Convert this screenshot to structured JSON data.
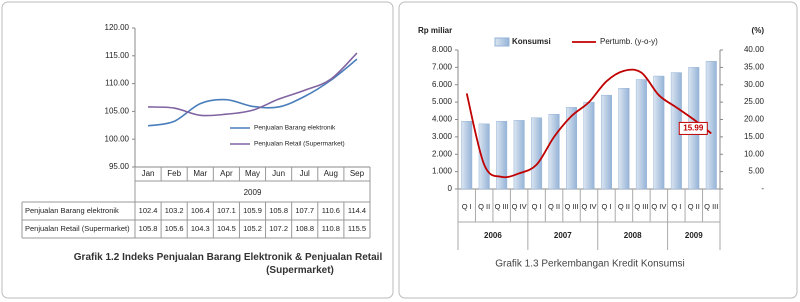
{
  "chart_data": [
    {
      "type": "line",
      "title": "Grafik 1.2 Indeks Penjualan Barang Elektronik & Penjualan Retail (Supermarket)",
      "categories": [
        "Jan",
        "Feb",
        "Mar",
        "Apr",
        "May",
        "Jun",
        "Jul",
        "Aug",
        "Sep"
      ],
      "x_group": "2009",
      "series": [
        {
          "name": "Penjualan Barang elektronik",
          "color": "#4a7ebb",
          "values": [
            102.4,
            103.2,
            106.4,
            107.1,
            105.9,
            105.8,
            107.7,
            110.6,
            114.4
          ]
        },
        {
          "name": "Penjualan Retail (Supermarket)",
          "color": "#8064a2",
          "values": [
            105.8,
            105.6,
            104.3,
            104.5,
            105.2,
            107.2,
            108.8,
            110.8,
            115.5
          ]
        }
      ],
      "ylim": [
        95,
        120
      ],
      "yticks": [
        {
          "value": 95,
          "label": "95.00"
        },
        {
          "value": 100,
          "label": "100.00"
        },
        {
          "value": 105,
          "label": "105.00"
        },
        {
          "value": 110,
          "label": "110.00"
        },
        {
          "value": 115,
          "label": "115.00"
        },
        {
          "value": 120,
          "label": "120.00"
        }
      ],
      "grid": false
    },
    {
      "type": "bar",
      "title": "Grafik 1.3 Perkembangan Kredit Konsumsi",
      "y_label": "Rp miliar",
      "y2_label": "(%)",
      "categories": [
        "Q I",
        "Q II",
        "Q III",
        "Q IV",
        "Q I",
        "Q II",
        "Q III",
        "Q IV",
        "Q I",
        "Q II",
        "Q III",
        "Q IV",
        "Q I",
        "Q II",
        "Q III"
      ],
      "groups": [
        {
          "label": "2006",
          "count": 4
        },
        {
          "label": "2007",
          "count": 4
        },
        {
          "label": "2008",
          "count": 4
        },
        {
          "label": "2009",
          "count": 3
        }
      ],
      "series": [
        {
          "name": "Konsumsi",
          "type": "bar",
          "color": "#b8cce4",
          "values": [
            3900,
            3750,
            3900,
            3950,
            4100,
            4300,
            4700,
            5000,
            5400,
            5800,
            6300,
            6500,
            6700,
            7000,
            7350
          ]
        },
        {
          "name": "Pertumb. (y-o-y)",
          "type": "line",
          "axis": "y2",
          "color": "#c00000",
          "values": [
            27.5,
            7,
            3.5,
            4.5,
            7,
            15,
            21,
            25,
            31,
            34,
            33.5,
            27,
            23.5,
            20,
            15.99
          ],
          "value_labels": [
            null,
            null,
            null,
            null,
            null,
            null,
            null,
            null,
            null,
            null,
            null,
            null,
            null,
            null,
            "15.99"
          ]
        }
      ],
      "ylim": [
        0,
        8000
      ],
      "yticks": [
        0,
        {
          "value": 1000,
          "label": "1.000"
        },
        {
          "value": 2000,
          "label": "2.000"
        },
        {
          "value": 3000,
          "label": "3.000"
        },
        {
          "value": 4000,
          "label": "4.000"
        },
        {
          "value": 5000,
          "label": "5.000"
        },
        {
          "value": 6000,
          "label": "6.000"
        },
        {
          "value": 7000,
          "label": "7.000"
        },
        {
          "value": 8000,
          "label": "8.000"
        }
      ],
      "y2lim": [
        0,
        40
      ],
      "y2ticks": [
        {
          "value": 0,
          "label": "-"
        },
        {
          "value": 5,
          "label": "5.00"
        },
        {
          "value": 10,
          "label": "10.00"
        },
        {
          "value": 15,
          "label": "15.00"
        },
        {
          "value": 20,
          "label": "20.00"
        },
        {
          "value": 25,
          "label": "25.00"
        },
        {
          "value": 30,
          "label": "30.00"
        },
        {
          "value": 35,
          "label": "35.00"
        },
        {
          "value": 40,
          "label": "40.00"
        }
      ],
      "grid": false
    }
  ]
}
